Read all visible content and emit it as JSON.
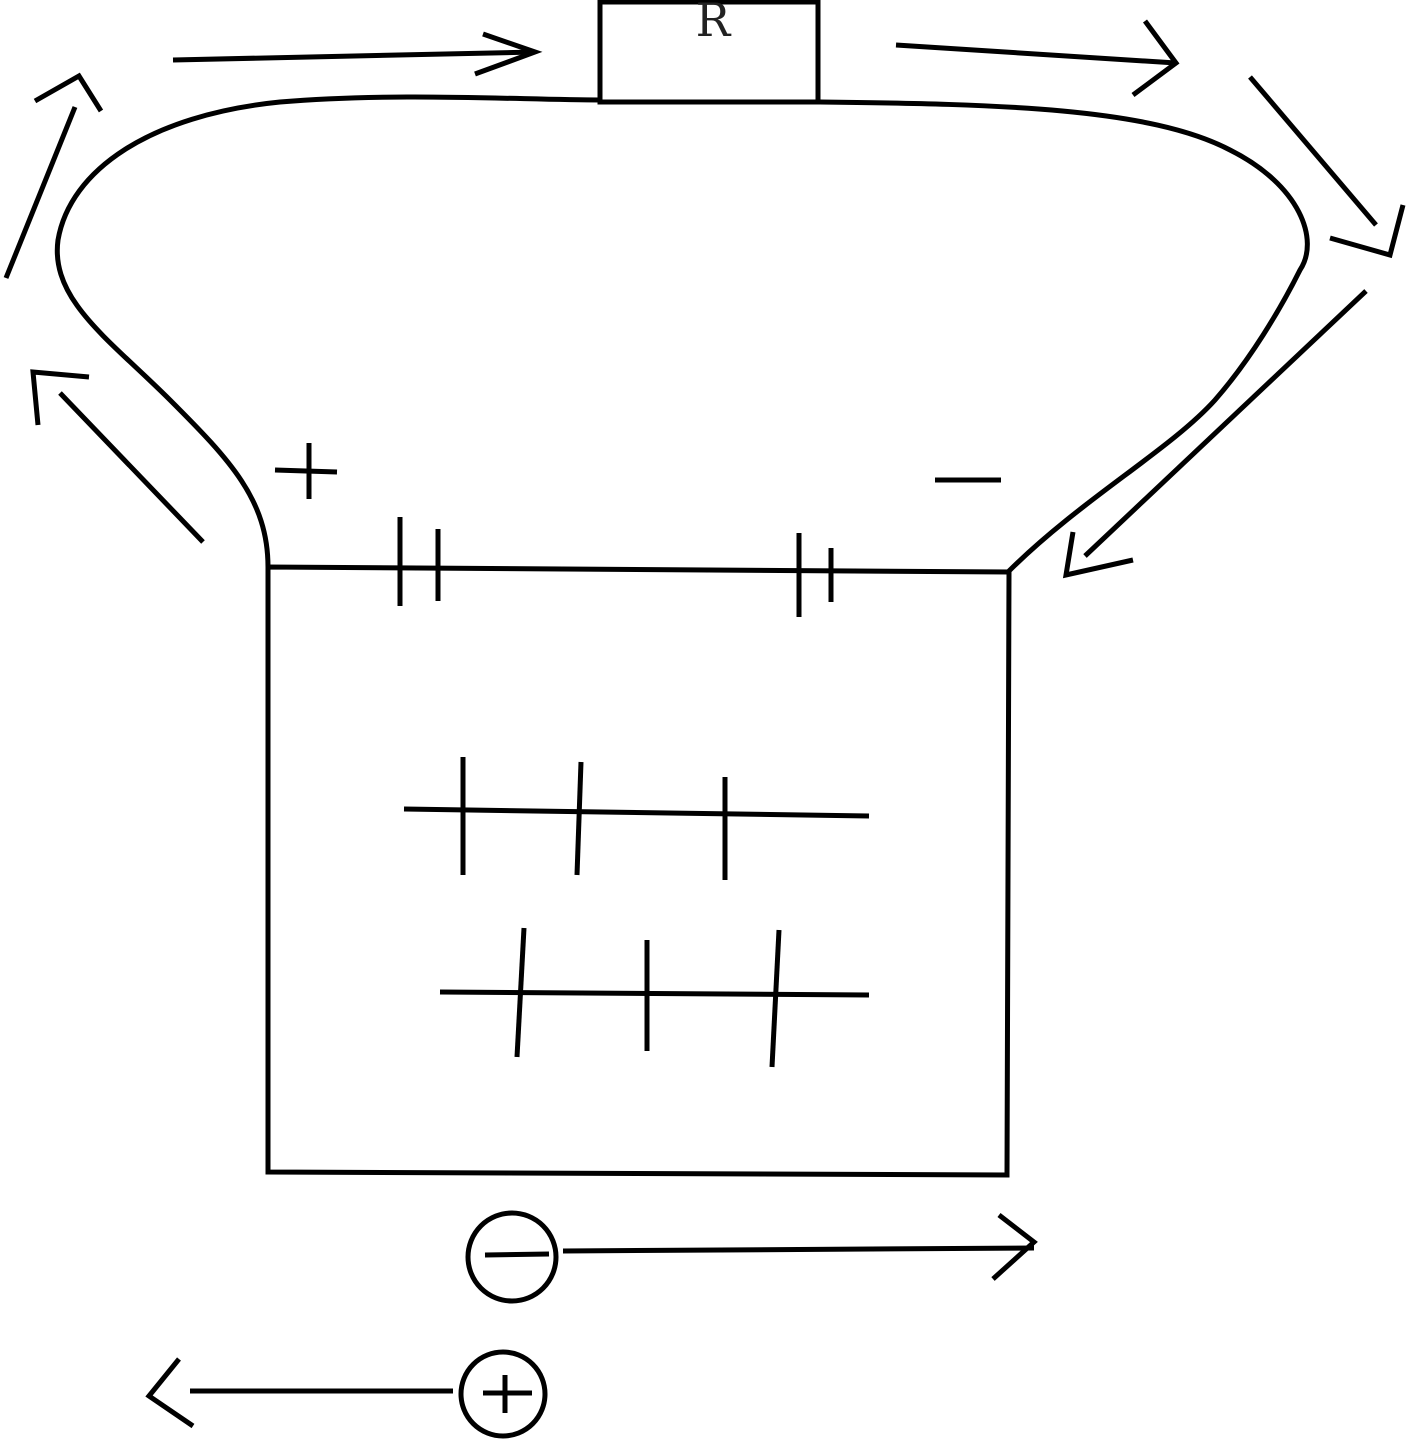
{
  "diagram": {
    "resistor": {
      "label": "R"
    },
    "terminal_positive": {
      "symbol": "+"
    },
    "terminal_negative": {
      "symbol": "−"
    },
    "electron_charge": {
      "symbol": "−"
    },
    "ion_charge": {
      "symbol": "+"
    },
    "colors": {
      "stroke": "#000000",
      "background": "#ffffff"
    }
  }
}
